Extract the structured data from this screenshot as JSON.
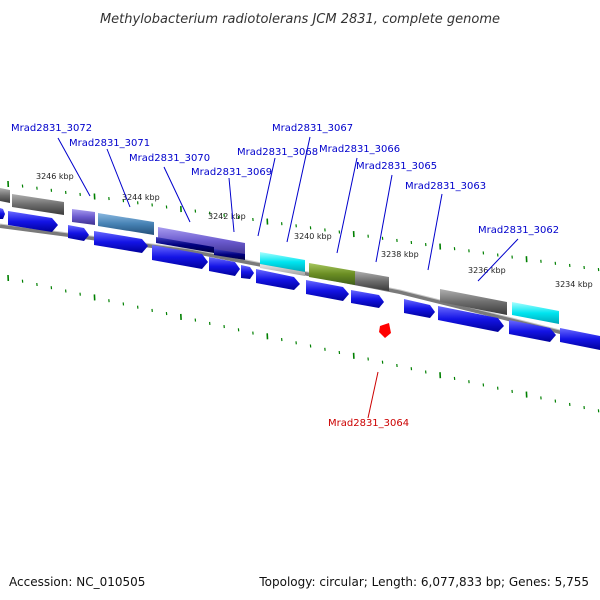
{
  "header": {
    "title": "Methylobacterium radiotolerans JCM 2831, complete genome"
  },
  "footer": {
    "accession": "Accession: NC_010505",
    "summary": "Topology: circular; Length: 6,077,833 bp; Genes: 5,755"
  },
  "scale_labels": [
    "3246 kbp",
    "3244 kbp",
    "3242 kbp",
    "3240 kbp",
    "3238 kbp",
    "3236 kbp",
    "3234 kbp"
  ],
  "gene_labels": [
    {
      "name": "Mrad2831_3072",
      "color": "#0000cc"
    },
    {
      "name": "Mrad2831_3071",
      "color": "#0000cc"
    },
    {
      "name": "Mrad2831_3070",
      "color": "#0000cc"
    },
    {
      "name": "Mrad2831_3069",
      "color": "#0000cc"
    },
    {
      "name": "Mrad2831_3068",
      "color": "#0000cc"
    },
    {
      "name": "Mrad2831_3067",
      "color": "#0000cc"
    },
    {
      "name": "Mrad2831_3066",
      "color": "#0000cc"
    },
    {
      "name": "Mrad2831_3065",
      "color": "#0000cc"
    },
    {
      "name": "Mrad2831_3063",
      "color": "#0000cc"
    },
    {
      "name": "Mrad2831_3062",
      "color": "#0000cc"
    },
    {
      "name": "Mrad2831_3064",
      "color": "#cc0000"
    }
  ],
  "colors": {
    "cds": "#1414e6",
    "gray_feature": "#707070",
    "cyan_feature": "#00e5f0",
    "olive_feature": "#6b8e23",
    "steelblue_feature": "#4682b4",
    "slateblue_feature": "#6a5acd",
    "navy_feature": "#000080",
    "tick": "#008000",
    "backbone": "#7a7a7a",
    "highlight": "#ff0000"
  }
}
